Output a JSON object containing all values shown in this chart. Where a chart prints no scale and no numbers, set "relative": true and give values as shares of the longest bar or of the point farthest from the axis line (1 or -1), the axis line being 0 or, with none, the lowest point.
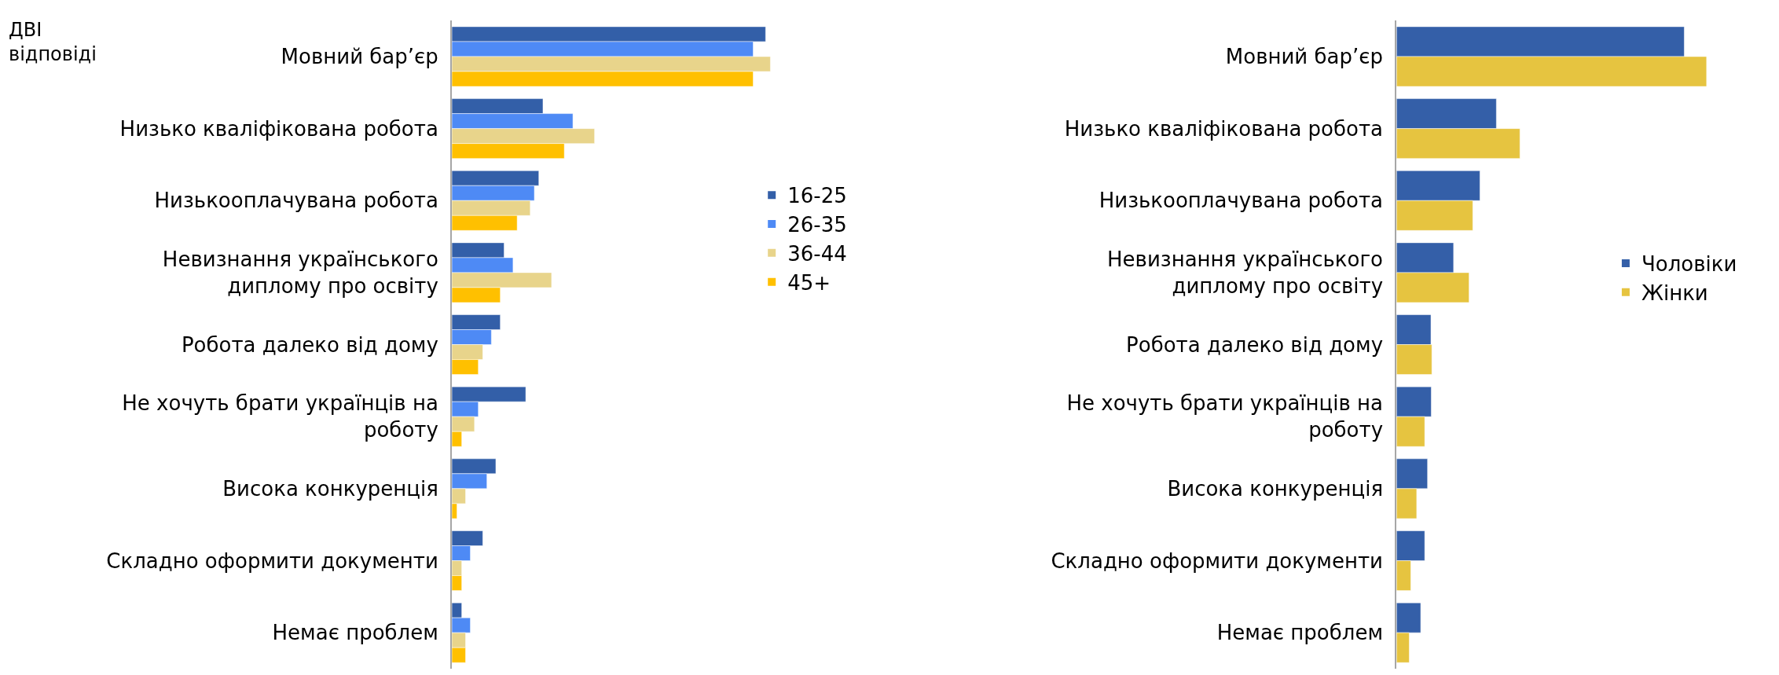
{
  "chart_data": [
    {
      "type": "bar",
      "orientation": "horizontal",
      "relative": true,
      "title": "ДВІ відповіді",
      "legend": "right",
      "categories": [
        "Мовний бар’єр",
        "Низько кваліфікована робота",
        "Низькооплачувана робота",
        "Невизнання українського диплому про освіту",
        "Робота далеко від дому",
        "Не хочуть брати українців на роботу",
        "Висока конкуренція",
        "Складно оформити документи",
        "Немає проблем"
      ],
      "series": [
        {
          "name": "16-25",
          "color": "#335fa8",
          "values": [
            0.985,
            0.286,
            0.273,
            0.164,
            0.152,
            0.232,
            0.138,
            0.097,
            0.031
          ]
        },
        {
          "name": "26-35",
          "color": "#4e8af5",
          "values": [
            0.946,
            0.38,
            0.259,
            0.192,
            0.124,
            0.083,
            0.11,
            0.058,
            0.058
          ]
        },
        {
          "name": "36-44",
          "color": "#e8d48b",
          "values": [
            1,
            0.448,
            0.246,
            0.313,
            0.097,
            0.071,
            0.043,
            0.031,
            0.043
          ]
        },
        {
          "name": "45+",
          "color": "#ffc000",
          "values": [
            0.946,
            0.353,
            0.205,
            0.152,
            0.083,
            0.031,
            0.016,
            0.031,
            0.043
          ]
        }
      ]
    },
    {
      "type": "bar",
      "orientation": "horizontal",
      "relative": true,
      "legend": "right",
      "categories": [
        "Мовний бар’єр",
        "Низько кваліфікована робота",
        "Низькооплачувана робота",
        "Невизнання українського диплому про освіту",
        "Робота далеко від дому",
        "Не хочуть брати українців на роботу",
        "Висока конкуренція",
        "Складно оформити документи",
        "Немає проблем"
      ],
      "series": [
        {
          "name": "Чоловіки",
          "color": "#345fa8",
          "values": [
            0.928,
            0.322,
            0.269,
            0.184,
            0.111,
            0.112,
            0.1,
            0.091,
            0.078
          ]
        },
        {
          "name": "Жінки",
          "color": "#e6c440",
          "values": [
            1,
            0.398,
            0.246,
            0.234,
            0.114,
            0.091,
            0.065,
            0.046,
            0.041
          ]
        }
      ]
    }
  ]
}
